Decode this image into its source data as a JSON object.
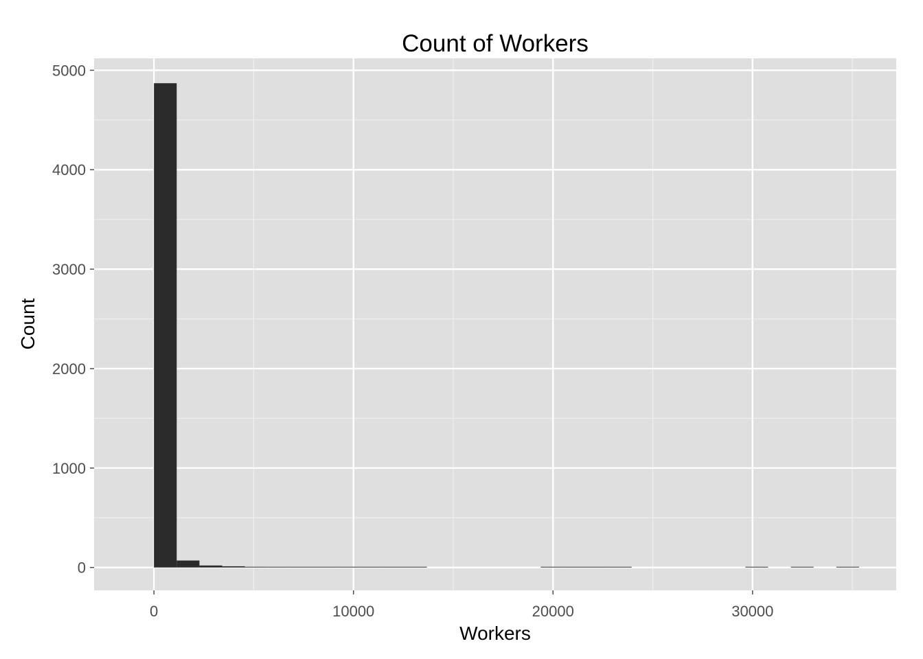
{
  "chart_data": {
    "type": "bar",
    "title": "Count of Workers",
    "xlabel": "Workers",
    "ylabel": "Count",
    "xlim": [
      -3000,
      37200
    ],
    "ylim": [
      -230,
      5120
    ],
    "x_ticks": [
      0,
      10000,
      20000,
      30000
    ],
    "y_ticks": [
      0,
      1000,
      2000,
      3000,
      4000,
      5000
    ],
    "grid": true,
    "bin_width": 1140,
    "bins": [
      {
        "x0": 0,
        "count": 4870
      },
      {
        "x0": 1140,
        "count": 70
      },
      {
        "x0": 2280,
        "count": 20
      },
      {
        "x0": 3420,
        "count": 12
      },
      {
        "x0": 4560,
        "count": 7
      },
      {
        "x0": 5700,
        "count": 3
      },
      {
        "x0": 6840,
        "count": 6
      },
      {
        "x0": 7980,
        "count": 2
      },
      {
        "x0": 9120,
        "count": 3
      },
      {
        "x0": 10260,
        "count": 1
      },
      {
        "x0": 11400,
        "count": 3
      },
      {
        "x0": 12540,
        "count": 1
      },
      {
        "x0": 13680,
        "count": 0
      },
      {
        "x0": 14820,
        "count": 0
      },
      {
        "x0": 15960,
        "count": 0
      },
      {
        "x0": 17100,
        "count": 0
      },
      {
        "x0": 18240,
        "count": 0
      },
      {
        "x0": 19380,
        "count": 1
      },
      {
        "x0": 20520,
        "count": 1
      },
      {
        "x0": 21660,
        "count": 1
      },
      {
        "x0": 22800,
        "count": 1
      },
      {
        "x0": 23940,
        "count": 0
      },
      {
        "x0": 25080,
        "count": 0
      },
      {
        "x0": 26220,
        "count": 0
      },
      {
        "x0": 27360,
        "count": 0
      },
      {
        "x0": 28500,
        "count": 0
      },
      {
        "x0": 29640,
        "count": 1
      },
      {
        "x0": 30780,
        "count": 0
      },
      {
        "x0": 31920,
        "count": 1
      },
      {
        "x0": 33060,
        "count": 0
      },
      {
        "x0": 34200,
        "count": 1
      }
    ],
    "colors": {
      "panel": "#dfdfdf",
      "grid_major": "#ffffff",
      "grid_minor": "#efefef",
      "bar": "#2b2b2b"
    }
  }
}
